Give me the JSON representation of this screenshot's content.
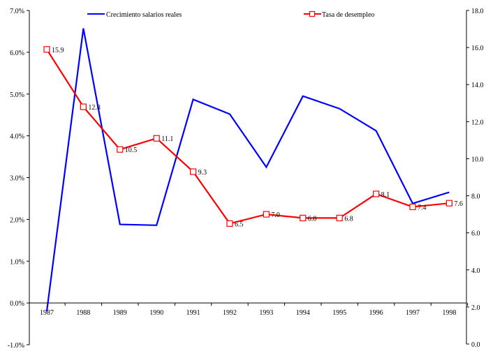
{
  "chart_data": {
    "type": "line",
    "title": "",
    "xlabel": "",
    "ylabel": "",
    "categories": [
      "1987",
      "1988",
      "1989",
      "1990",
      "1991",
      "1992",
      "1993",
      "1994",
      "1995",
      "1996",
      "1997",
      "1998"
    ],
    "y_left": {
      "range": [
        -1.0,
        7.0
      ],
      "ticks": [
        -1.0,
        0.0,
        1.0,
        2.0,
        3.0,
        4.0,
        5.0,
        6.0,
        7.0
      ],
      "tick_labels": [
        "-1.0%",
        "0.0%",
        "1.0%",
        "2.0%",
        "3.0%",
        "4.0%",
        "5.0%",
        "6.0%",
        "7.0%"
      ]
    },
    "y_right": {
      "range": [
        0.0,
        18.0
      ],
      "ticks": [
        0,
        2,
        4,
        6,
        8,
        10,
        12,
        14,
        16,
        18
      ],
      "tick_labels": [
        "0.0",
        "2.0",
        "4.0",
        "6.0",
        "8.0",
        "10.0",
        "12.0",
        "14.0",
        "16.0",
        "18.0"
      ]
    },
    "grid": false,
    "legend_position": "top",
    "series": [
      {
        "name": "Crecimiento salarios reales",
        "axis": "left",
        "color": "#0000ff",
        "marker": "none",
        "values": [
          -0.2,
          6.57,
          1.88,
          1.86,
          4.87,
          4.52,
          3.25,
          4.95,
          4.65,
          4.12,
          2.38,
          2.65
        ]
      },
      {
        "name": "Tasa de desempleo",
        "axis": "right",
        "color": "#ff0000",
        "marker": "square",
        "values": [
          15.9,
          12.8,
          10.5,
          11.1,
          9.3,
          6.5,
          7.0,
          6.8,
          6.8,
          8.1,
          7.4,
          7.6
        ],
        "data_labels": [
          "15.9",
          "12.8",
          "10.5",
          "11.1",
          "9.3",
          "6.5",
          "7.0",
          "6.8",
          "6.8",
          "8.1",
          "7.4",
          "7.6"
        ]
      }
    ]
  }
}
